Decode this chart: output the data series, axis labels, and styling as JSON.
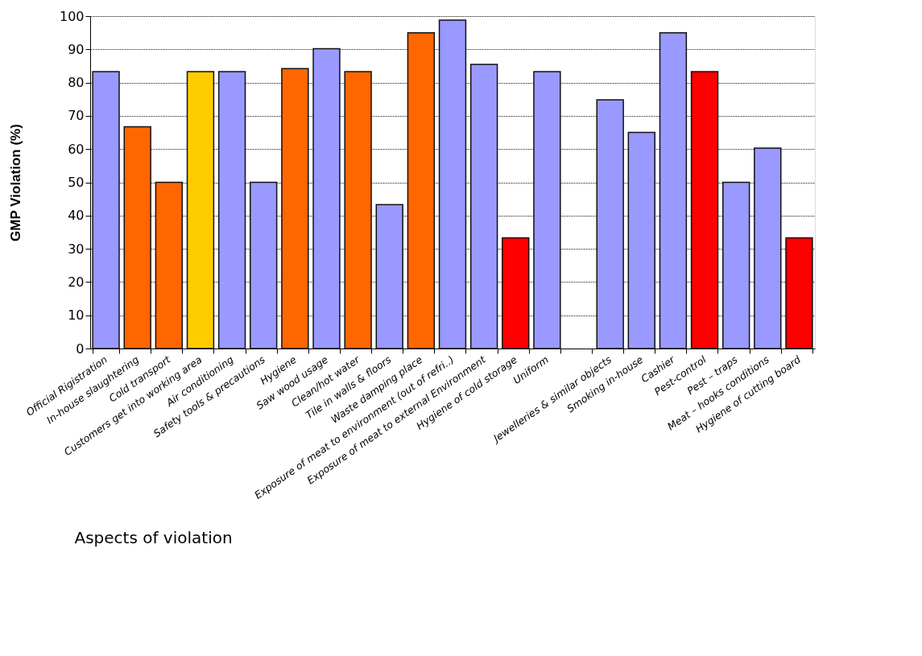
{
  "chart_data": {
    "type": "bar",
    "xlabel": "Aspects of violation",
    "ylabel": "GMP Violation (%)",
    "categories": [
      "Official Rigistration",
      "In-house slaughtering",
      "Cold transport",
      "Customers get into working area",
      "Air conditioning",
      "Safety tools & precautions",
      "Hygiene",
      "Saw wood usage",
      "Clean/hot water",
      "Tile in walls & floors",
      "Waste damping place",
      "Exposure of meat to environment (out of refri..)",
      "Exposure of meat to external Environment",
      "Hygiene of cold storage",
      "Uniform",
      null,
      "Jewelleries & similar objects",
      "Smoking in-house",
      "Cashier",
      "Pest-control",
      "Pest – traps",
      "Meat – hooks conditions",
      "Hygiene of cutting board"
    ],
    "values": [
      83.3,
      66.7,
      50,
      83.3,
      83.3,
      50,
      84.2,
      90.2,
      83.3,
      43.3,
      95,
      98.8,
      85.5,
      33.3,
      83.3,
      null,
      74.8,
      65,
      95,
      83.3,
      50,
      60.3,
      33.3
    ],
    "colors": [
      "#9999ff",
      "#ff6600",
      "#ff6600",
      "#ffcc00",
      "#9999ff",
      "#9999ff",
      "#ff6600",
      "#9999ff",
      "#ff6600",
      "#9999ff",
      "#ff6600",
      "#9999ff",
      "#9999ff",
      "#ff0000",
      "#9999ff",
      "#9999ff",
      "#9999ff",
      "#9999ff",
      "#9999ff",
      "#ff0000",
      "#9999ff",
      "#9999ff",
      "#ff0000"
    ],
    "ylim": [
      0,
      100
    ],
    "yticks": [
      0,
      10,
      20,
      30,
      40,
      50,
      60,
      70,
      80,
      90,
      100
    ],
    "grid": "y"
  }
}
